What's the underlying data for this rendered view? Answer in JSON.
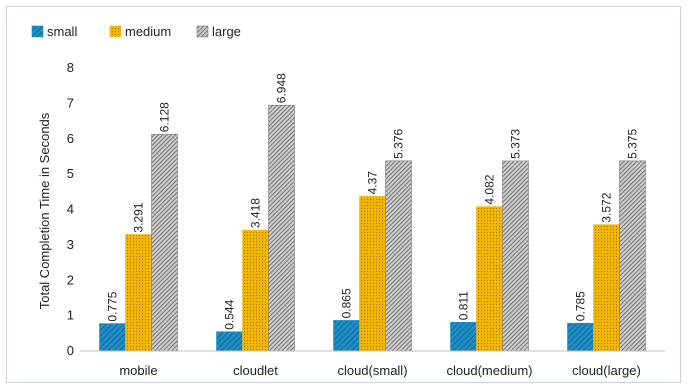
{
  "chart_data": {
    "type": "bar",
    "title": "",
    "xlabel": "",
    "ylabel": "Total Completion Time in Seconds",
    "ylim": [
      0,
      8
    ],
    "yticks": [
      0,
      1,
      2,
      3,
      4,
      5,
      6,
      7,
      8
    ],
    "grid": false,
    "legend_position": "top-left",
    "categories": [
      "mobile",
      "cloudlet",
      "cloud(small)",
      "cloud(medium)",
      "cloud(large)"
    ],
    "series": [
      {
        "name": "small",
        "values": [
          0.775,
          0.544,
          0.865,
          0.811,
          0.785
        ],
        "color": "#1f8fc7",
        "pattern": "diagonal-stripes"
      },
      {
        "name": "medium",
        "values": [
          3.291,
          3.418,
          4.37,
          4.082,
          3.572
        ],
        "color": "#f5b800",
        "pattern": "dots"
      },
      {
        "name": "large",
        "values": [
          6.128,
          6.948,
          5.376,
          5.373,
          5.375
        ],
        "color": "#7a7a7a",
        "pattern": "dense-hatch"
      }
    ]
  }
}
